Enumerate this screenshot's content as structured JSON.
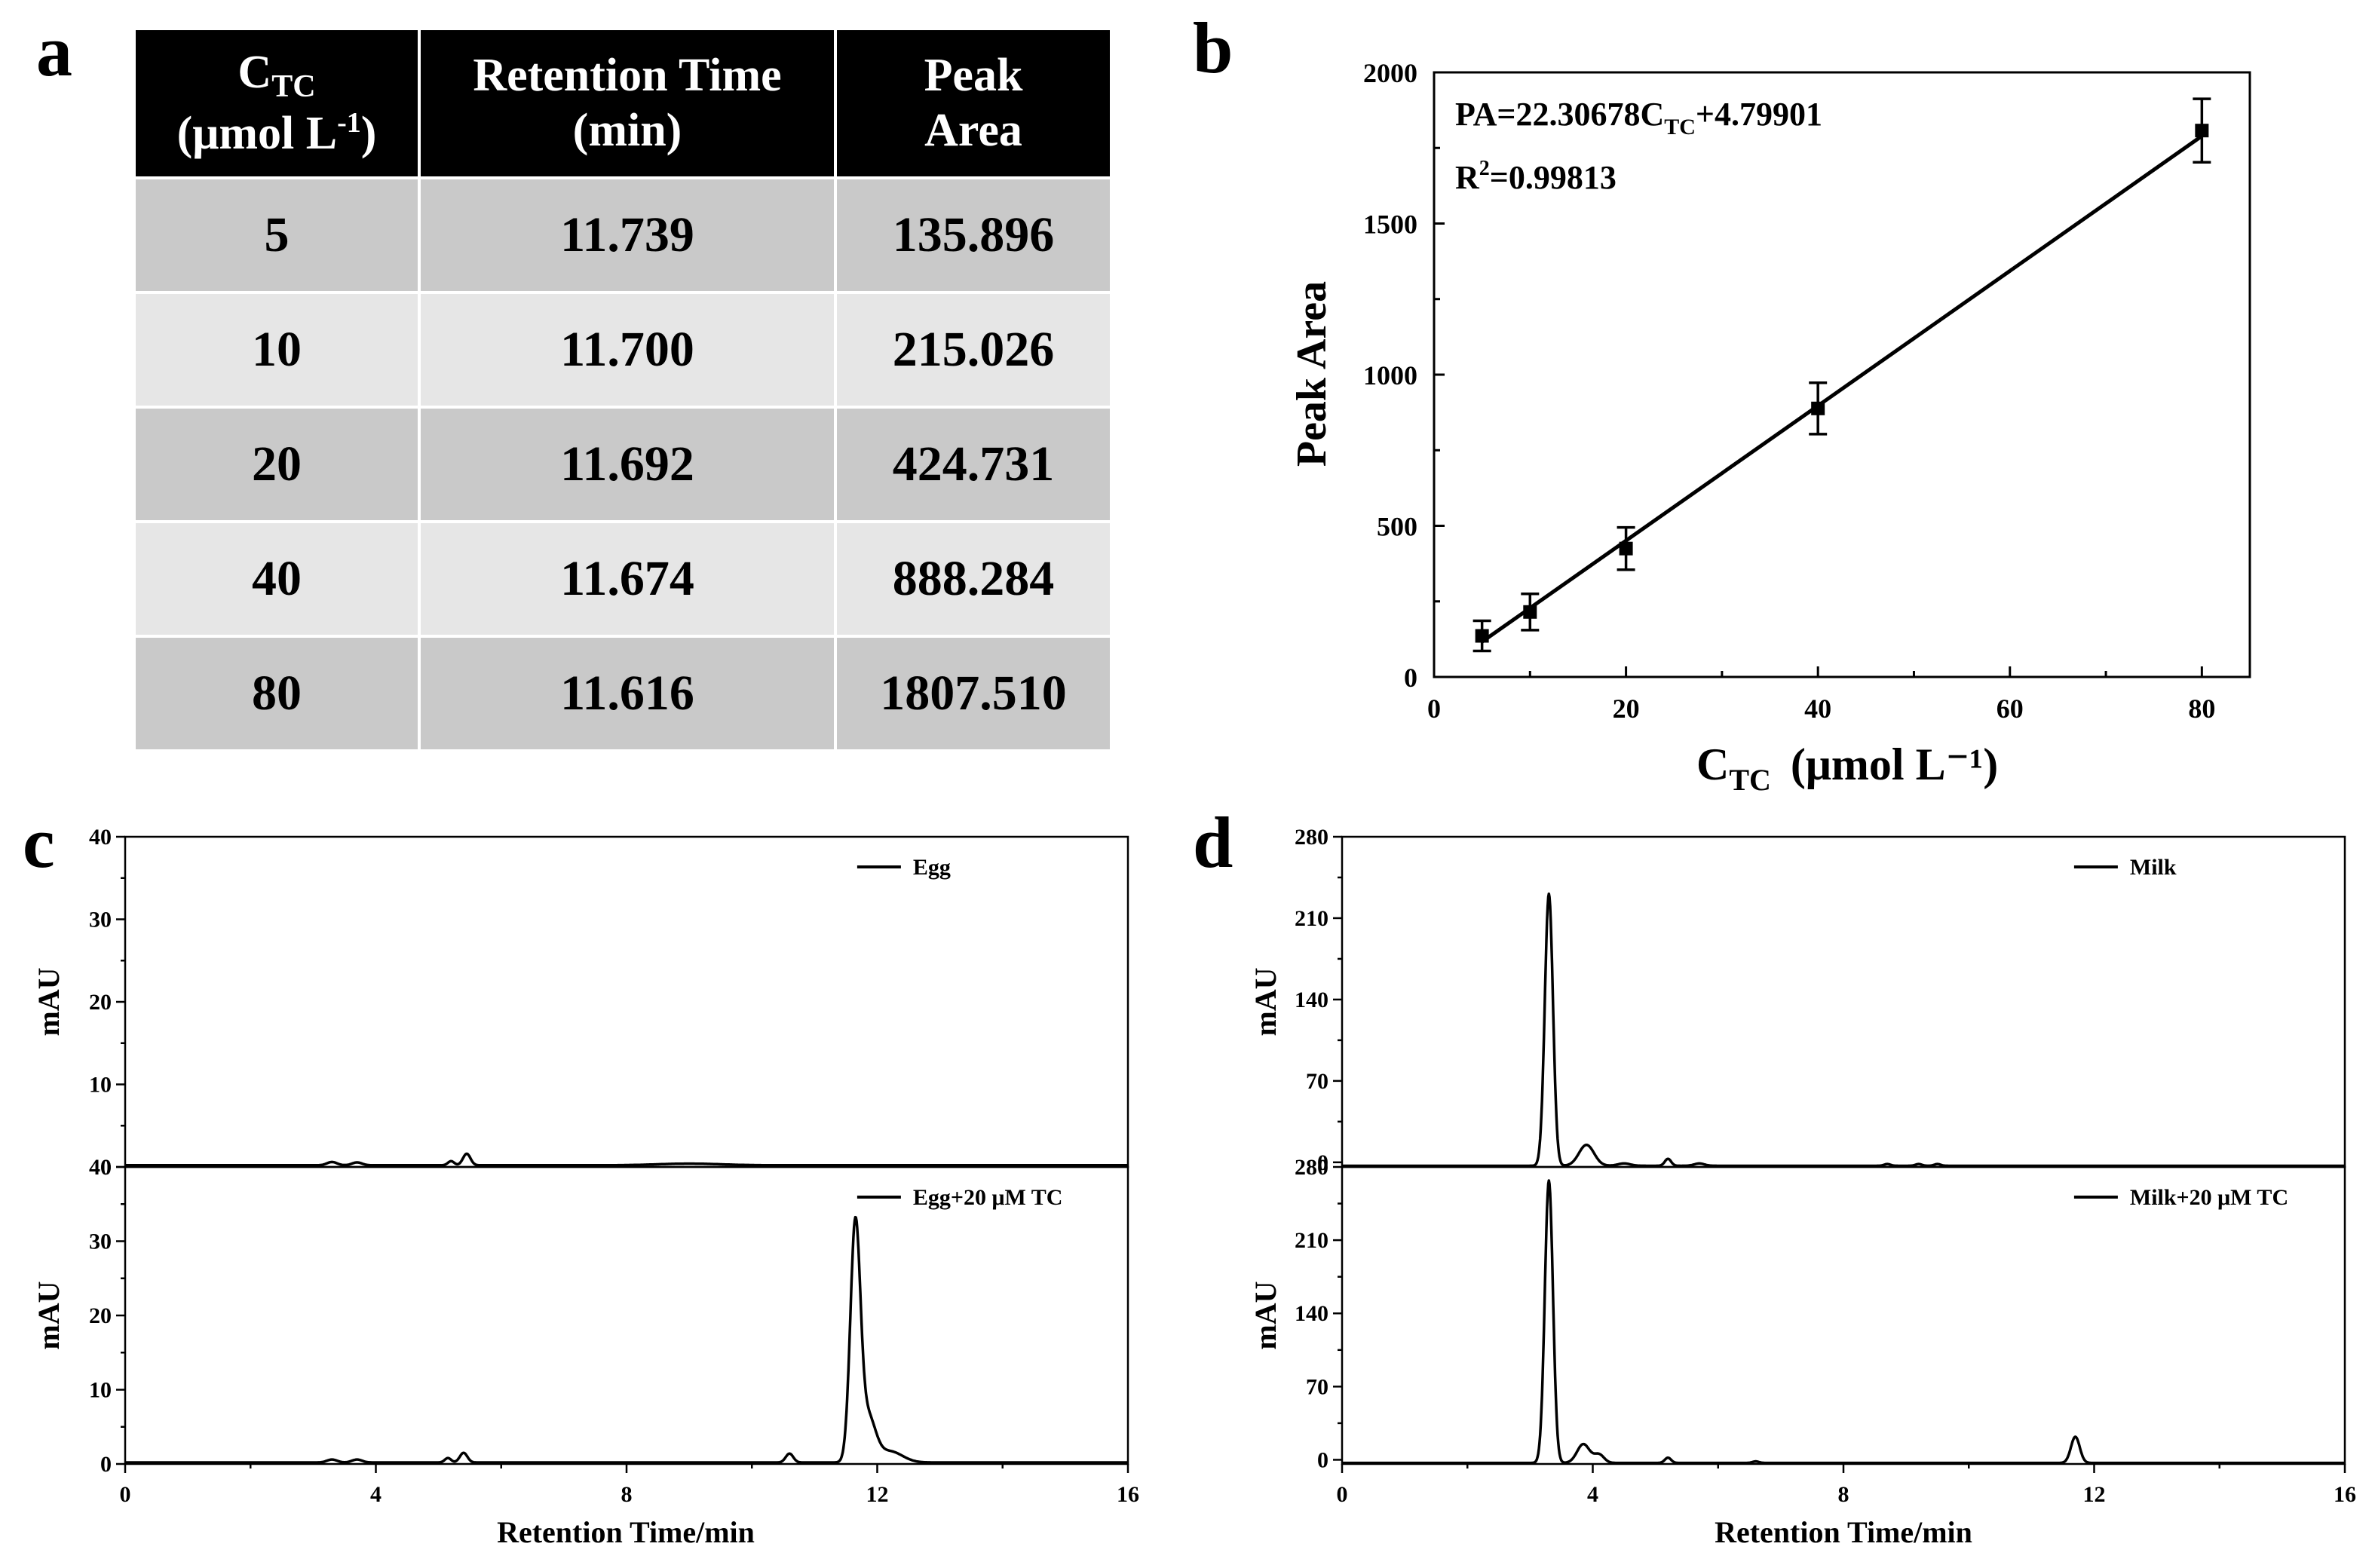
{
  "panels": {
    "a": "a",
    "b": "b",
    "c": "c",
    "d": "d"
  },
  "table": {
    "headers": {
      "ctc_main": "C",
      "ctc_sub": "TC",
      "ctc_unit_pre": "(μmol L",
      "ctc_unit_sup": "-1",
      "ctc_unit_post": ")",
      "retention": "Retention Time",
      "retention_unit": "(min)",
      "peak": "Peak",
      "peak_unit": "Area"
    },
    "rows": [
      {
        "c": "5",
        "rt": "11.739",
        "pa": "135.896"
      },
      {
        "c": "10",
        "rt": "11.700",
        "pa": "215.026"
      },
      {
        "c": "20",
        "rt": "11.692",
        "pa": "424.731"
      },
      {
        "c": "40",
        "rt": "11.674",
        "pa": "888.284"
      },
      {
        "c": "80",
        "rt": "11.616",
        "pa": "1807.510"
      }
    ]
  },
  "chart_data": [
    {
      "id": "b",
      "type": "scatter",
      "title": "",
      "xlabel_main": "C",
      "xlabel_sub": "TC",
      "xlabel_unit": "(μmol L⁻¹)",
      "ylabel": "Peak Area",
      "xlim": [
        0,
        85
      ],
      "ylim": [
        0,
        2000
      ],
      "xticks": [
        0,
        20,
        40,
        60,
        80
      ],
      "yticks": [
        0,
        500,
        1000,
        1500,
        2000
      ],
      "points": [
        {
          "x": 5,
          "y": 135.896,
          "err": 50
        },
        {
          "x": 10,
          "y": 215.026,
          "err": 60
        },
        {
          "x": 20,
          "y": 424.731,
          "err": 70
        },
        {
          "x": 40,
          "y": 888.284,
          "err": 85
        },
        {
          "x": 80,
          "y": 1807.51,
          "err": 105
        }
      ],
      "fit": {
        "slope": 22.30678,
        "intercept": 4.79901,
        "x_range": [
          5,
          80
        ]
      },
      "eq_pre": "PA=22.30678C",
      "eq_sub": "TC",
      "eq_post": "+4.79901",
      "r2_pre": "R",
      "r2_sup": "2",
      "r2_post": "=0.99813"
    },
    {
      "id": "c",
      "type": "line",
      "xlabel": "Retention Time/min",
      "xlim": [
        0,
        16
      ],
      "xticks": [
        0,
        4,
        8,
        12,
        16
      ],
      "series": [
        {
          "name": "Egg",
          "ylabel": "mAU",
          "ylim": [
            0,
            40
          ],
          "yticks": [
            0,
            10,
            20,
            30,
            40
          ],
          "baseline": 0.2,
          "peaks": [
            [
              3.3,
              0.4,
              0.08
            ],
            [
              3.7,
              0.35,
              0.08
            ],
            [
              5.2,
              0.5,
              0.05
            ],
            [
              5.45,
              1.4,
              0.06
            ],
            [
              9.0,
              0.2,
              0.5
            ]
          ]
        },
        {
          "name": "Egg+20 μM TC",
          "ylabel": "mAU",
          "ylim": [
            0,
            40
          ],
          "yticks": [
            0,
            10,
            20,
            30,
            40
          ],
          "baseline": 0.2,
          "peaks": [
            [
              3.3,
              0.4,
              0.08
            ],
            [
              3.7,
              0.4,
              0.08
            ],
            [
              5.15,
              0.6,
              0.05
            ],
            [
              5.4,
              1.3,
              0.06
            ],
            [
              10.6,
              1.2,
              0.06
            ],
            [
              11.65,
              31.5,
              0.08
            ],
            [
              11.85,
              6,
              0.12
            ],
            [
              12.2,
              1.5,
              0.2
            ]
          ]
        }
      ]
    },
    {
      "id": "d",
      "type": "line",
      "xlabel": "Retention Time/min",
      "xlim": [
        0,
        16
      ],
      "xticks": [
        0,
        4,
        8,
        12,
        16
      ],
      "series": [
        {
          "name": "Milk",
          "ylabel": "mAU",
          "ylim": [
            -4,
            280
          ],
          "yticks": [
            0,
            70,
            140,
            210,
            280
          ],
          "baseline": -3,
          "peaks": [
            [
              3.3,
              234,
              0.065
            ],
            [
              3.9,
              18,
              0.12
            ],
            [
              4.5,
              2,
              0.1
            ],
            [
              5.2,
              6,
              0.05
            ],
            [
              5.7,
              2,
              0.08
            ],
            [
              8.7,
              1.5,
              0.05
            ],
            [
              9.2,
              1.5,
              0.05
            ],
            [
              9.5,
              1.5,
              0.05
            ]
          ]
        },
        {
          "name": "Milk+20 μM TC",
          "ylabel": "mAU",
          "ylim": [
            -4,
            280
          ],
          "yticks": [
            0,
            70,
            140,
            210,
            280
          ],
          "baseline": -3,
          "peaks": [
            [
              3.3,
              270,
              0.065
            ],
            [
              3.85,
              18,
              0.1
            ],
            [
              4.1,
              8,
              0.08
            ],
            [
              5.2,
              5,
              0.05
            ],
            [
              6.6,
              1.5,
              0.05
            ],
            [
              11.7,
              25,
              0.07
            ]
          ]
        }
      ]
    }
  ]
}
